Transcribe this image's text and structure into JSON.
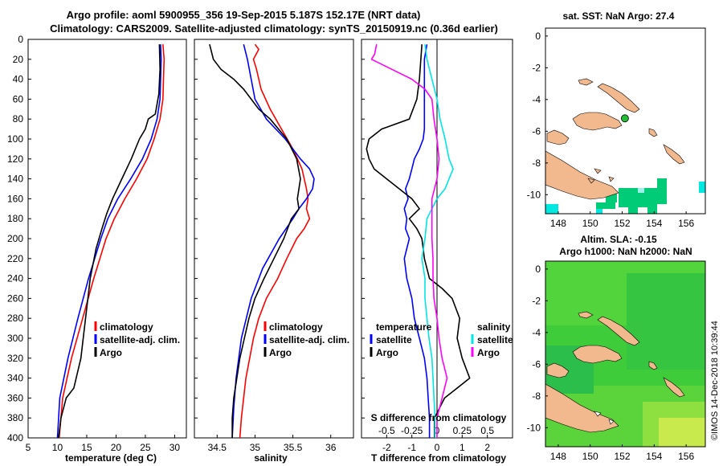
{
  "title_line1": "Argo profile: aoml 5900955_356 19-Sep-2015 5.187S 152.17E (NRT data)",
  "title_line2": "Climatology: CARS2009. Satellite-adjusted climatology: synTS_20150919.nc (0.36d earlier)",
  "timestamp": "©IMOS 14-Dec-2018 10:39:44",
  "colors": {
    "climatology": "#ff0000",
    "satellite": "#0000ff",
    "argo": "#000000",
    "s_climatology": "#ff00ff",
    "s_satellite": "#00e5e5",
    "land": "#f2b98f",
    "sst_cell": "#00cc77",
    "sst_cell2": "#00e8e0"
  },
  "depth_ticks": [
    "0",
    "20",
    "40",
    "60",
    "80",
    "100",
    "120",
    "140",
    "160",
    "180",
    "200",
    "220",
    "240",
    "260",
    "280",
    "300",
    "320",
    "340",
    "360",
    "380",
    "400"
  ],
  "chart_data": [
    {
      "type": "line",
      "id": "temperature",
      "xlabel": "temperature (deg C)",
      "ylabel": "depth",
      "xlim": [
        5,
        32
      ],
      "ylim": [
        400,
        0
      ],
      "xticks": [
        "5",
        "10",
        "15",
        "20",
        "25",
        "30"
      ],
      "xtick_values": [
        5,
        10,
        15,
        20,
        25,
        30
      ],
      "legend": [
        "climatology",
        "satellite-adj. clim.",
        "Argo"
      ],
      "series": [
        {
          "name": "climatology",
          "depth": [
            5,
            20,
            40,
            60,
            80,
            100,
            120,
            140,
            160,
            180,
            200,
            240,
            280,
            320,
            360,
            400
          ],
          "values": [
            28.0,
            28.2,
            28.1,
            28.0,
            27.5,
            26.5,
            25.3,
            23.5,
            21.5,
            19.7,
            18.3,
            16.2,
            14.3,
            12.4,
            10.9,
            10.3
          ]
        },
        {
          "name": "satellite-adj. clim.",
          "depth": [
            5,
            20,
            40,
            60,
            80,
            100,
            120,
            140,
            160,
            180,
            200,
            240,
            280,
            320,
            360,
            400
          ],
          "values": [
            27.6,
            27.7,
            27.6,
            27.5,
            27.0,
            26.0,
            24.5,
            22.5,
            20.3,
            18.6,
            17.4,
            15.3,
            13.5,
            11.8,
            10.4,
            10.0
          ]
        },
        {
          "name": "Argo",
          "depth": [
            5,
            30,
            55,
            75,
            80,
            90,
            100,
            120,
            140,
            150,
            160,
            175,
            190,
            210,
            240,
            280,
            320,
            350,
            360,
            380,
            400
          ],
          "values": [
            27.4,
            27.5,
            27.3,
            26.7,
            25.5,
            25.0,
            24.0,
            22.6,
            21.0,
            20.2,
            19.4,
            18.4,
            17.6,
            16.6,
            15.6,
            14.8,
            14.0,
            12.8,
            11.5,
            10.6,
            10.2
          ]
        }
      ]
    },
    {
      "type": "line",
      "id": "salinity",
      "xlabel": "salinity",
      "ylabel": "depth",
      "xlim": [
        34.2,
        36.3
      ],
      "ylim": [
        400,
        0
      ],
      "xticks": [
        "34.5",
        "35",
        "35.5",
        "36"
      ],
      "xtick_values": [
        34.5,
        35,
        35.5,
        36
      ],
      "legend": [
        "climatology",
        "satellite-adj. clim.",
        "Argo"
      ],
      "series": [
        {
          "name": "climatology",
          "depth": [
            5,
            10,
            20,
            30,
            50,
            70,
            90,
            110,
            130,
            150,
            160,
            170,
            180,
            190,
            200,
            220,
            240,
            260,
            280,
            300,
            320,
            340,
            360,
            380,
            400
          ],
          "values": [
            35.0,
            35.05,
            34.98,
            35.02,
            35.08,
            35.2,
            35.35,
            35.5,
            35.62,
            35.68,
            35.7,
            35.68,
            35.72,
            35.65,
            35.55,
            35.42,
            35.3,
            35.15,
            35.05,
            34.98,
            34.93,
            34.88,
            34.85,
            34.82,
            34.8
          ]
        },
        {
          "name": "satellite-adj. clim.",
          "depth": [
            5,
            20,
            40,
            60,
            80,
            100,
            120,
            130,
            140,
            150,
            160,
            170,
            180,
            200,
            230,
            260,
            300,
            340,
            370,
            400
          ],
          "values": [
            34.85,
            34.9,
            34.95,
            35.0,
            35.15,
            35.4,
            35.6,
            35.72,
            35.78,
            35.76,
            35.68,
            35.58,
            35.5,
            35.32,
            35.1,
            34.95,
            34.82,
            34.75,
            34.72,
            34.7
          ]
        },
        {
          "name": "Argo",
          "depth": [
            5,
            20,
            30,
            40,
            50,
            60,
            70,
            80,
            100,
            120,
            140,
            150,
            160,
            170,
            180,
            200,
            220,
            240,
            260,
            280,
            300,
            320,
            340,
            360,
            380,
            400
          ],
          "values": [
            34.4,
            34.45,
            34.55,
            34.72,
            34.85,
            34.95,
            35.05,
            35.2,
            35.42,
            35.55,
            35.6,
            35.58,
            35.56,
            35.58,
            35.48,
            35.38,
            35.25,
            35.12,
            35.0,
            34.92,
            34.86,
            34.8,
            34.76,
            34.72,
            34.7,
            34.7
          ]
        }
      ]
    },
    {
      "type": "line",
      "id": "differences",
      "xlabel": "T difference from climatology",
      "xlabel_top": "S difference from climatology",
      "xlim_T": [
        -3,
        3
      ],
      "xlim_S": [
        -0.75,
        0.75
      ],
      "ylim": [
        400,
        0
      ],
      "xticks": [
        "-2",
        "-1",
        "0",
        "1",
        "2"
      ],
      "xtick_values": [
        -2,
        -1,
        0,
        1,
        2
      ],
      "s_ticks": [
        "-0.5",
        "-0.25",
        "0",
        "0.25",
        "0.5"
      ],
      "s_tick_values": [
        -0.5,
        -0.25,
        0,
        0.25,
        0.5
      ],
      "legend_T": {
        "head": "temperature",
        "items": [
          "satellite",
          "Argo"
        ]
      },
      "legend_S": {
        "head": "salinity",
        "items": [
          "satellite",
          "Argo"
        ]
      },
      "series": [
        {
          "name": "T satellite",
          "axis": "T",
          "depth": [
            5,
            20,
            40,
            60,
            80,
            90,
            100,
            110,
            120,
            130,
            140,
            150,
            160,
            170,
            180,
            190,
            200,
            220,
            240,
            260,
            280,
            300,
            320,
            340,
            360,
            380,
            400
          ],
          "values": [
            -0.4,
            -0.5,
            -0.5,
            -0.5,
            -0.5,
            -0.5,
            -0.55,
            -0.7,
            -0.9,
            -1.0,
            -1.1,
            -1.25,
            -1.15,
            -1.3,
            -1.2,
            -1.25,
            -1.1,
            -1.3,
            -1.2,
            -1.0,
            -0.9,
            -0.7,
            -0.5,
            -0.4,
            -0.35,
            -0.3,
            -0.3
          ]
        },
        {
          "name": "T Argo",
          "axis": "T",
          "depth": [
            5,
            40,
            60,
            80,
            90,
            100,
            110,
            120,
            130,
            140,
            150,
            160,
            170,
            180,
            190,
            200,
            220,
            240,
            250,
            260,
            280,
            300,
            320,
            340,
            350,
            360,
            380,
            400
          ],
          "values": [
            -0.6,
            -0.7,
            -0.8,
            -1.1,
            -2.2,
            -2.7,
            -2.8,
            -2.7,
            -2.5,
            -2.0,
            -1.5,
            -1.0,
            -0.7,
            -1.1,
            -0.8,
            -0.6,
            -0.5,
            -0.3,
            0.2,
            0.6,
            0.9,
            0.8,
            1.0,
            1.3,
            0.8,
            0.3,
            -0.1,
            -0.1
          ]
        },
        {
          "name": "S satellite",
          "axis": "S",
          "depth": [
            5,
            20,
            40,
            60,
            80,
            100,
            120,
            130,
            140,
            150,
            160,
            170,
            180,
            200,
            220,
            240,
            260,
            280,
            300,
            320,
            340,
            360,
            380,
            400
          ],
          "values": [
            -0.12,
            -0.1,
            -0.05,
            0.0,
            0.03,
            0.08,
            0.12,
            0.16,
            0.12,
            0.08,
            0.0,
            -0.05,
            -0.1,
            -0.12,
            -0.15,
            -0.12,
            -0.12,
            -0.1,
            -0.08,
            -0.05,
            -0.04,
            -0.03,
            -0.02,
            -0.02
          ]
        },
        {
          "name": "S Argo",
          "axis": "S",
          "depth": [
            5,
            15,
            20,
            30,
            40,
            50,
            60,
            80,
            100,
            120,
            140,
            160,
            180,
            200,
            220,
            240,
            260,
            280,
            300,
            320,
            340,
            360,
            380,
            400
          ],
          "values": [
            -0.6,
            -0.62,
            -0.65,
            -0.45,
            -0.25,
            -0.12,
            -0.05,
            -0.03,
            0.0,
            0.02,
            0.0,
            -0.05,
            -0.05,
            -0.05,
            -0.04,
            -0.04,
            -0.03,
            0.0,
            0.02,
            0.05,
            0.1,
            0.05,
            0.0,
            0.0
          ]
        }
      ]
    },
    {
      "type": "heatmap",
      "id": "sst-map",
      "title": "sat. SST: NaN Argo: 27.4",
      "xticks": [
        "148",
        "150",
        "152",
        "154",
        "156"
      ],
      "xtick_values": [
        148,
        150,
        152,
        154,
        156
      ],
      "yticks": [
        "0",
        "-2",
        "-4",
        "-6",
        "-8",
        "-10"
      ],
      "ytick_values": [
        0,
        -2,
        -4,
        -6,
        -8,
        -10
      ],
      "xlim": [
        147.2,
        157.2
      ],
      "ylim": [
        -11.2,
        0.5
      ],
      "argo_position": {
        "lon": 152.17,
        "lat": -5.187
      }
    },
    {
      "type": "heatmap",
      "id": "sla-map",
      "title": "Altim. SLA: -0.15",
      "subtitle": "Argo h1000: NaN h2000: NaN",
      "xticks": [
        "148",
        "150",
        "152",
        "154",
        "156"
      ],
      "xtick_values": [
        148,
        150,
        152,
        154,
        156
      ],
      "yticks": [
        "0",
        "-2",
        "-4",
        "-6",
        "-8",
        "-10"
      ],
      "ytick_values": [
        0,
        -2,
        -4,
        -6,
        -8,
        -10
      ],
      "xlim": [
        147.2,
        157.2
      ],
      "ylim": [
        -11.2,
        0.5
      ]
    }
  ]
}
